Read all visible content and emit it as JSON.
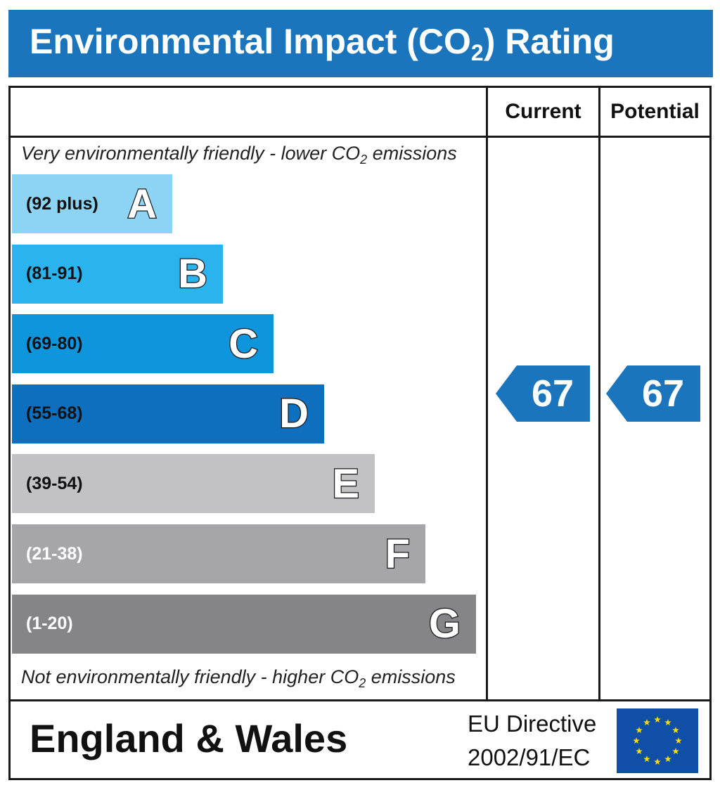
{
  "header": {
    "title_before": "Environmental Impact (CO",
    "title_sub": "2",
    "title_after": ") Rating"
  },
  "columns": {
    "current": "Current",
    "potential": "Potential"
  },
  "notes": {
    "top_before": "Very environmentally friendly - lower CO",
    "top_sub": "2",
    "top_after": " emissions",
    "bottom_before": "Not environmentally friendly - higher CO",
    "bottom_sub": "2",
    "bottom_after": " emissions"
  },
  "footer": {
    "region": "England & Wales",
    "directive_line1": "EU Directive",
    "directive_line2": "2002/91/EC"
  },
  "chart_data": {
    "type": "bar",
    "title": "Environmental Impact (CO2) Rating",
    "bands": [
      {
        "letter": "A",
        "range": "(92 plus)",
        "color": "#8dd3f3",
        "text_color": "#111111"
      },
      {
        "letter": "B",
        "range": "(81-91)",
        "color": "#2ab3ec",
        "text_color": "#111111"
      },
      {
        "letter": "C",
        "range": "(69-80)",
        "color": "#0f95dc",
        "text_color": "#111111"
      },
      {
        "letter": "D",
        "range": "(55-68)",
        "color": "#0d6fbd",
        "text_color": "#111111"
      },
      {
        "letter": "E",
        "range": "(39-54)",
        "color": "#c2c2c4",
        "text_color": "#111111"
      },
      {
        "letter": "F",
        "range": "(21-38)",
        "color": "#a6a6a8",
        "text_color": "#ffffff"
      },
      {
        "letter": "G",
        "range": "(1-20)",
        "color": "#858587",
        "text_color": "#ffffff"
      }
    ],
    "current": {
      "value": 67,
      "band": "D"
    },
    "potential": {
      "value": 67,
      "band": "D"
    },
    "indicator_color": "#1a75bc"
  }
}
